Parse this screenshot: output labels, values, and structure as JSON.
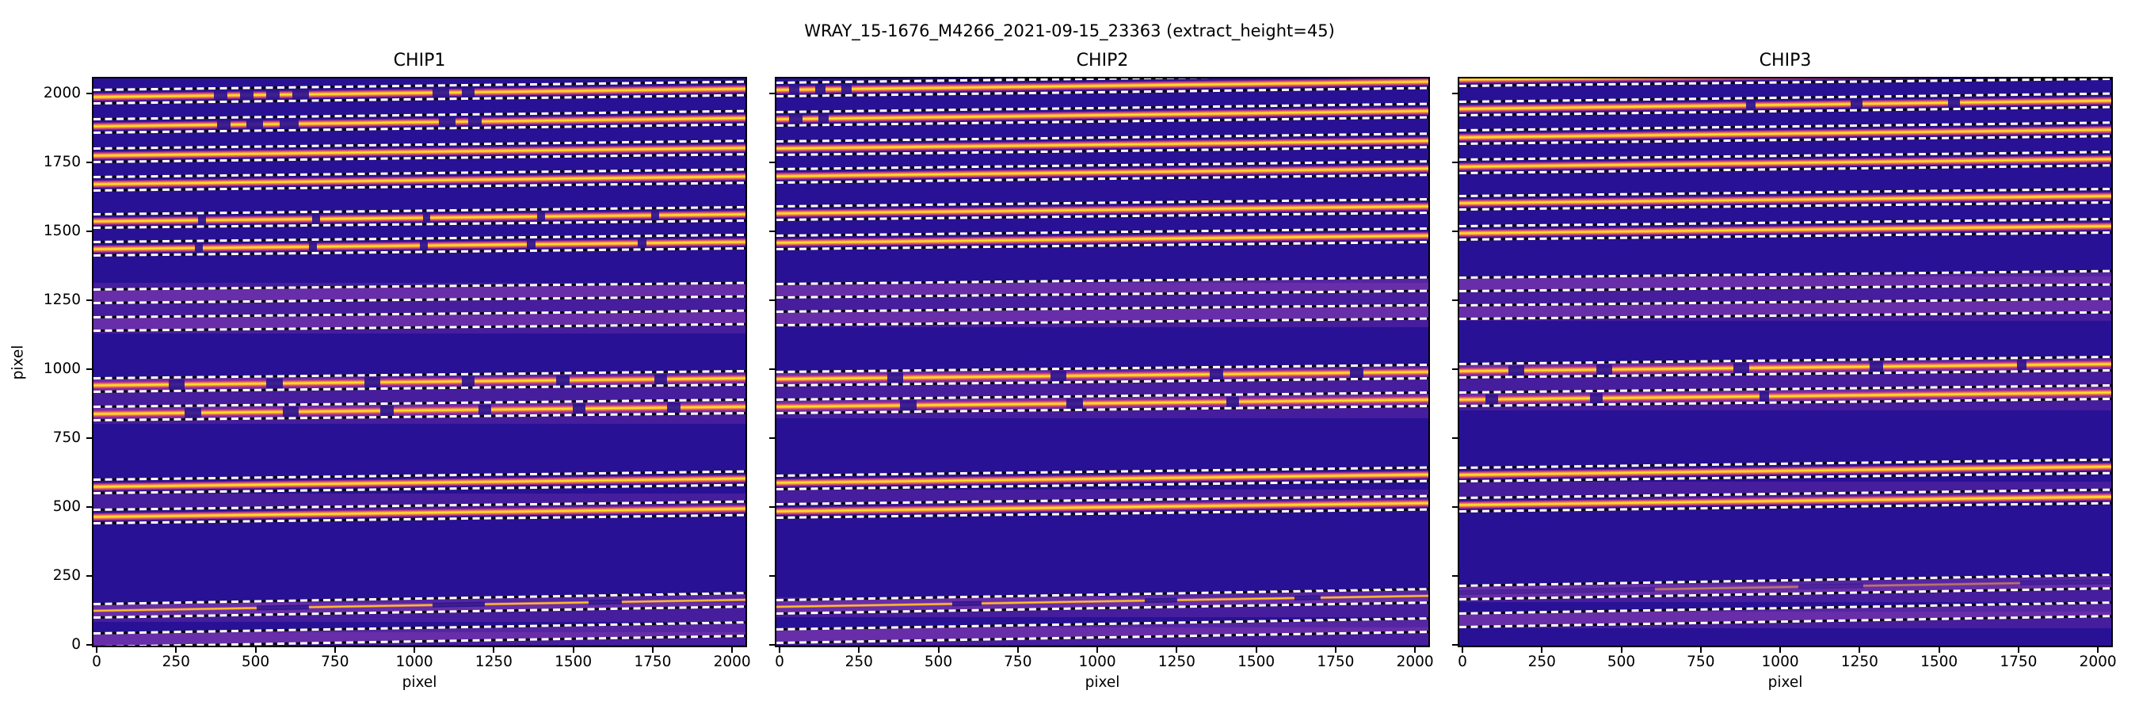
{
  "colors": {
    "figure_bg": "#ffffff",
    "axis": "#000000",
    "background": "#281195",
    "band": "rgba(160,70,190,0.38)",
    "tint": "rgba(150,62,180,0.28)",
    "trace_core": "#f9e721",
    "trace_mid": "#fca636",
    "trace_edge": "#e16462",
    "trace_fringe": "rgba(177,42,144,0.9)",
    "trace_gap": "#2c1391",
    "dash_white": "#ffffff",
    "dash_dark": "#0a0a0a"
  },
  "chart_data": {
    "type": "heatmap",
    "suptitle": "WRAY_15-1676_M4266_2021-09-15_23363  (extract_height=45)",
    "extract_height": 45,
    "colormap": "plasma",
    "xlabel": "pixel",
    "ylabel": "pixel",
    "xticks": [
      0,
      250,
      500,
      750,
      1000,
      1250,
      1500,
      1750,
      2000
    ],
    "yticks": [
      0,
      250,
      500,
      750,
      1000,
      1250,
      1500,
      1750,
      2000
    ],
    "x_range": [
      -10,
      2042
    ],
    "y_range": [
      -4,
      2055
    ],
    "grid": false,
    "legend": false,
    "chips": [
      {
        "title": "CHIP1",
        "tint_zones": [
          [
            1130,
            1312
          ],
          [
            800,
            968
          ],
          [
            491,
            548
          ],
          [
            82,
            152
          ],
          [
            0,
            45
          ]
        ],
        "orders": [
          {
            "c": 1990,
            "type": "bright",
            "slope": 30,
            "gaps": [
              [
                0.185,
                0.205
              ],
              [
                0.225,
                0.245
              ],
              [
                0.265,
                0.285
              ],
              [
                0.305,
                0.33
              ],
              [
                0.52,
                0.545
              ],
              [
                0.565,
                0.585
              ]
            ]
          },
          {
            "c": 1882,
            "type": "bright",
            "slope": 30,
            "gaps": [
              [
                0.19,
                0.21
              ],
              [
                0.235,
                0.26
              ],
              [
                0.285,
                0.315
              ],
              [
                0.53,
                0.555
              ],
              [
                0.575,
                0.595
              ]
            ]
          },
          {
            "c": 1775,
            "type": "bright",
            "slope": 28,
            "gaps": []
          },
          {
            "c": 1672,
            "type": "bright",
            "slope": 28,
            "gaps": []
          },
          {
            "c": 1537,
            "type": "bright",
            "slope": 26,
            "gaps": [
              [
                0.16,
                0.172
              ],
              [
                0.335,
                0.347
              ],
              [
                0.505,
                0.517
              ],
              [
                0.68,
                0.692
              ],
              [
                0.855,
                0.867
              ]
            ]
          },
          {
            "c": 1438,
            "type": "bright",
            "slope": 26,
            "gaps": [
              [
                0.155,
                0.168
              ],
              [
                0.33,
                0.343
              ],
              [
                0.5,
                0.513
              ],
              [
                0.665,
                0.678
              ],
              [
                0.835,
                0.848
              ]
            ]
          },
          {
            "c": 1263,
            "type": "faint",
            "slope": 24
          },
          {
            "c": 1163,
            "type": "faint",
            "slope": 24
          },
          {
            "c": 941,
            "type": "bright",
            "strip": true,
            "slope": 26,
            "gaps": [
              [
                0.115,
                0.14
              ],
              [
                0.265,
                0.29
              ],
              [
                0.415,
                0.44
              ],
              [
                0.565,
                0.585
              ],
              [
                0.71,
                0.73
              ],
              [
                0.86,
                0.88
              ]
            ]
          },
          {
            "c": 839,
            "type": "bright",
            "strip": true,
            "slope": 26,
            "gaps": [
              [
                0.14,
                0.165
              ],
              [
                0.29,
                0.315
              ],
              [
                0.44,
                0.46
              ],
              [
                0.59,
                0.61
              ],
              [
                0.735,
                0.755
              ],
              [
                0.88,
                0.9
              ]
            ]
          },
          {
            "c": 573,
            "type": "bright",
            "slope": 30,
            "gaps": []
          },
          {
            "c": 466,
            "type": "bright",
            "slope": 30,
            "gaps": []
          },
          {
            "c": 123,
            "type": "thin",
            "slope": 40,
            "gaps": [
              [
                0.25,
                0.33
              ],
              [
                0.52,
                0.6
              ],
              [
                0.76,
                0.81
              ]
            ]
          },
          {
            "c": 15,
            "type": "faint",
            "slope": 40
          }
        ]
      },
      {
        "title": "CHIP2",
        "tint_zones": [
          [
            1152,
            1312
          ],
          [
            820,
            992
          ],
          [
            509,
            562
          ],
          [
            100,
            172
          ],
          [
            0,
            62
          ]
        ],
        "orders": [
          {
            "c": 2015,
            "type": "bright",
            "slope": 30,
            "gaps": [
              [
                0.02,
                0.035
              ],
              [
                0.06,
                0.075
              ],
              [
                0.1,
                0.115
              ]
            ]
          },
          {
            "c": 1908,
            "type": "bright",
            "slope": 30,
            "gaps": [
              [
                0.02,
                0.04
              ],
              [
                0.065,
                0.08
              ]
            ]
          },
          {
            "c": 1803,
            "type": "bright",
            "slope": 28,
            "gaps": []
          },
          {
            "c": 1700,
            "type": "bright",
            "slope": 28,
            "gaps": []
          },
          {
            "c": 1566,
            "type": "bright",
            "slope": 26,
            "gaps": []
          },
          {
            "c": 1461,
            "type": "bright",
            "slope": 26,
            "gaps": []
          },
          {
            "c": 1283,
            "type": "faint",
            "slope": 24
          },
          {
            "c": 1183,
            "type": "faint",
            "slope": 24
          },
          {
            "c": 964,
            "type": "bright",
            "strip": true,
            "slope": 26,
            "gaps": [
              [
                0.17,
                0.195
              ],
              [
                0.42,
                0.445
              ],
              [
                0.665,
                0.685
              ],
              [
                0.88,
                0.9
              ]
            ]
          },
          {
            "c": 865,
            "type": "bright",
            "strip": true,
            "slope": 26,
            "gaps": [
              [
                0.19,
                0.215
              ],
              [
                0.445,
                0.47
              ],
              [
                0.69,
                0.71
              ]
            ]
          },
          {
            "c": 588,
            "type": "bright",
            "slope": 30,
            "gaps": []
          },
          {
            "c": 484,
            "type": "bright",
            "slope": 30,
            "gaps": []
          },
          {
            "c": 137,
            "type": "thin",
            "slope": 40,
            "gaps": [
              [
                0.27,
                0.315
              ],
              [
                0.565,
                0.615
              ],
              [
                0.795,
                0.835
              ]
            ]
          },
          {
            "c": 31,
            "type": "faint",
            "slope": 40
          }
        ]
      },
      {
        "title": "CHIP3",
        "tint_zones": [
          [
            1175,
            1335
          ],
          [
            850,
            1022
          ],
          [
            531,
            591
          ],
          [
            155,
            218
          ],
          [
            58,
            120
          ]
        ],
        "orders": [
          {
            "c": 2053,
            "type": "bright",
            "slope": 26,
            "gaps": []
          },
          {
            "c": 1946,
            "type": "bright",
            "slope": 30,
            "gaps": [
              [
                0.44,
                0.455
              ],
              [
                0.6,
                0.618
              ],
              [
                0.75,
                0.768
              ]
            ]
          },
          {
            "c": 1841,
            "type": "bright",
            "slope": 28,
            "gaps": []
          },
          {
            "c": 1736,
            "type": "bright",
            "slope": 28,
            "gaps": []
          },
          {
            "c": 1604,
            "type": "bright",
            "slope": 26,
            "gaps": []
          },
          {
            "c": 1494,
            "type": "bright",
            "slope": 26,
            "gaps": []
          },
          {
            "c": 1306,
            "type": "faint",
            "slope": 24
          },
          {
            "c": 1206,
            "type": "faint",
            "slope": 24
          },
          {
            "c": 994,
            "type": "bright",
            "strip": true,
            "slope": 26,
            "gaps": [
              [
                0.075,
                0.1
              ],
              [
                0.21,
                0.235
              ],
              [
                0.42,
                0.445
              ],
              [
                0.63,
                0.65
              ],
              [
                0.855,
                0.87
              ]
            ]
          },
          {
            "c": 889,
            "type": "bright",
            "strip": true,
            "slope": 26,
            "gaps": [
              [
                0.04,
                0.06
              ],
              [
                0.2,
                0.22
              ],
              [
                0.46,
                0.475
              ]
            ]
          },
          {
            "c": 616,
            "type": "bright",
            "slope": 30,
            "gaps": []
          },
          {
            "c": 507,
            "type": "bright",
            "slope": 30,
            "gaps": []
          },
          {
            "c": 189,
            "type": "thin",
            "dim": true,
            "slope": 40,
            "gaps": [
              [
                0,
                0.3
              ],
              [
                0.52,
                0.62
              ],
              [
                0.86,
                1
              ]
            ]
          },
          {
            "c": 89,
            "type": "faint",
            "slope": 40
          }
        ]
      }
    ]
  }
}
